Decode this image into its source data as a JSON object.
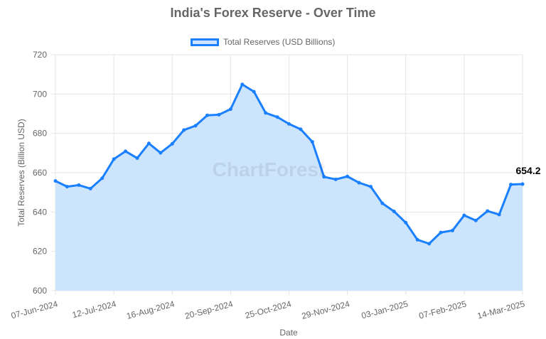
{
  "chart_data": {
    "type": "area",
    "title": "India's Forex Reserve - Over Time",
    "xlabel": "Date",
    "ylabel": "Total Reserves (Billion USD)",
    "ylim": [
      600,
      720
    ],
    "yticks": [
      "600",
      "620",
      "640",
      "660",
      "680",
      "700",
      "720"
    ],
    "xticks": [
      "07-Jun-2024",
      "12-Jul-2024",
      "16-Aug-2024",
      "20-Sep-2024",
      "25-Oct-2024",
      "29-Nov-2024",
      "03-Jan-2025",
      "07-Feb-2025",
      "14-Mar-2025"
    ],
    "grid": true,
    "legend_position": "top",
    "watermark": "ChartForest",
    "series": [
      {
        "name": "Total Reserves (USD Billions)",
        "color": "#1a80ff",
        "fill": "#cce4fc",
        "x": [
          "07-Jun-2024",
          "14-Jun-2024",
          "21-Jun-2024",
          "28-Jun-2024",
          "05-Jul-2024",
          "12-Jul-2024",
          "19-Jul-2024",
          "26-Jul-2024",
          "02-Aug-2024",
          "09-Aug-2024",
          "16-Aug-2024",
          "23-Aug-2024",
          "30-Aug-2024",
          "06-Sep-2024",
          "13-Sep-2024",
          "20-Sep-2024",
          "27-Sep-2024",
          "04-Oct-2024",
          "11-Oct-2024",
          "18-Oct-2024",
          "25-Oct-2024",
          "01-Nov-2024",
          "08-Nov-2024",
          "15-Nov-2024",
          "22-Nov-2024",
          "29-Nov-2024",
          "06-Dec-2024",
          "13-Dec-2024",
          "20-Dec-2024",
          "27-Dec-2024",
          "03-Jan-2025",
          "10-Jan-2025",
          "17-Jan-2025",
          "24-Jan-2025",
          "31-Jan-2025",
          "07-Feb-2025",
          "14-Feb-2025",
          "21-Feb-2025",
          "28-Feb-2025",
          "07-Mar-2025",
          "14-Mar-2025"
        ],
        "values": [
          655.8,
          652.9,
          653.7,
          651.9,
          657.2,
          666.9,
          670.9,
          667.4,
          674.9,
          670.1,
          674.7,
          681.7,
          683.9,
          689.2,
          689.5,
          692.3,
          704.9,
          701.2,
          690.4,
          688.3,
          684.8,
          682.1,
          675.7,
          657.9,
          656.6,
          658.1,
          654.9,
          652.9,
          644.4,
          640.3,
          634.6,
          625.9,
          623.9,
          629.6,
          630.6,
          638.3,
          635.7,
          640.5,
          638.7,
          653.97,
          654.2
        ],
        "last_label": "654.2"
      }
    ]
  }
}
